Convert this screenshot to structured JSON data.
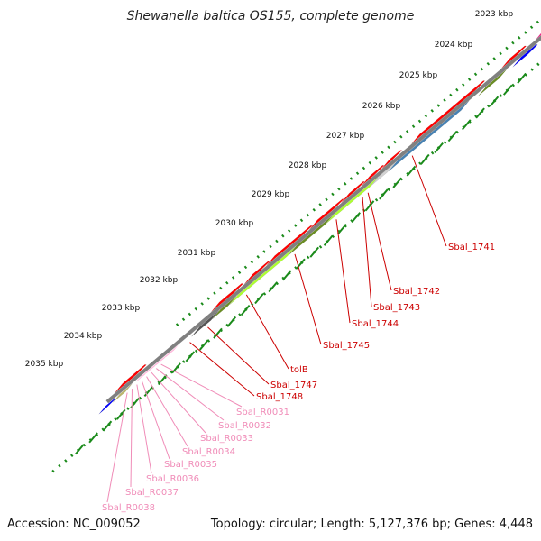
{
  "title": "Shewanella baltica OS155, complete genome",
  "accession": "Accession: NC_009052",
  "summary": "Topology: circular; Length: 5,127,376 bp; Genes: 4,448",
  "colors": {
    "backbone": "#808080",
    "tick_dotted": "#1a8a1a",
    "cds": "#ff0000",
    "misc_feature": "#ff1a8c",
    "trna": "#ffb3d9",
    "blue": "#0000ff",
    "steel": "#4682b4",
    "olive": "#6b8e23",
    "lime": "#adff2f",
    "khaki": "#bdb76b",
    "dark_gray": "#555555",
    "light_gray": "#d3d3d3",
    "label_gene": "#cc0000",
    "label_trna": "#f08cb8"
  },
  "kbp_labels": [
    "2023 kbp",
    "2024 kbp",
    "2025 kbp",
    "2026 kbp",
    "2027 kbp",
    "2028 kbp",
    "2029 kbp",
    "2030 kbp",
    "2031 kbp",
    "2032 kbp",
    "2033 kbp",
    "2034 kbp",
    "2035 kbp"
  ],
  "gene_labels": [
    "Sbal_1741",
    "Sbal_1742",
    "Sbal_1743",
    "Sbal_1744",
    "Sbal_1745",
    "tolB",
    "Sbal_1747",
    "Sbal_1748"
  ],
  "trna_labels": [
    "Sbal_R0031",
    "Sbal_R0032",
    "Sbal_R0033",
    "Sbal_R0034",
    "Sbal_R0035",
    "Sbal_R0036",
    "Sbal_R0037",
    "Sbal_R0038"
  ]
}
